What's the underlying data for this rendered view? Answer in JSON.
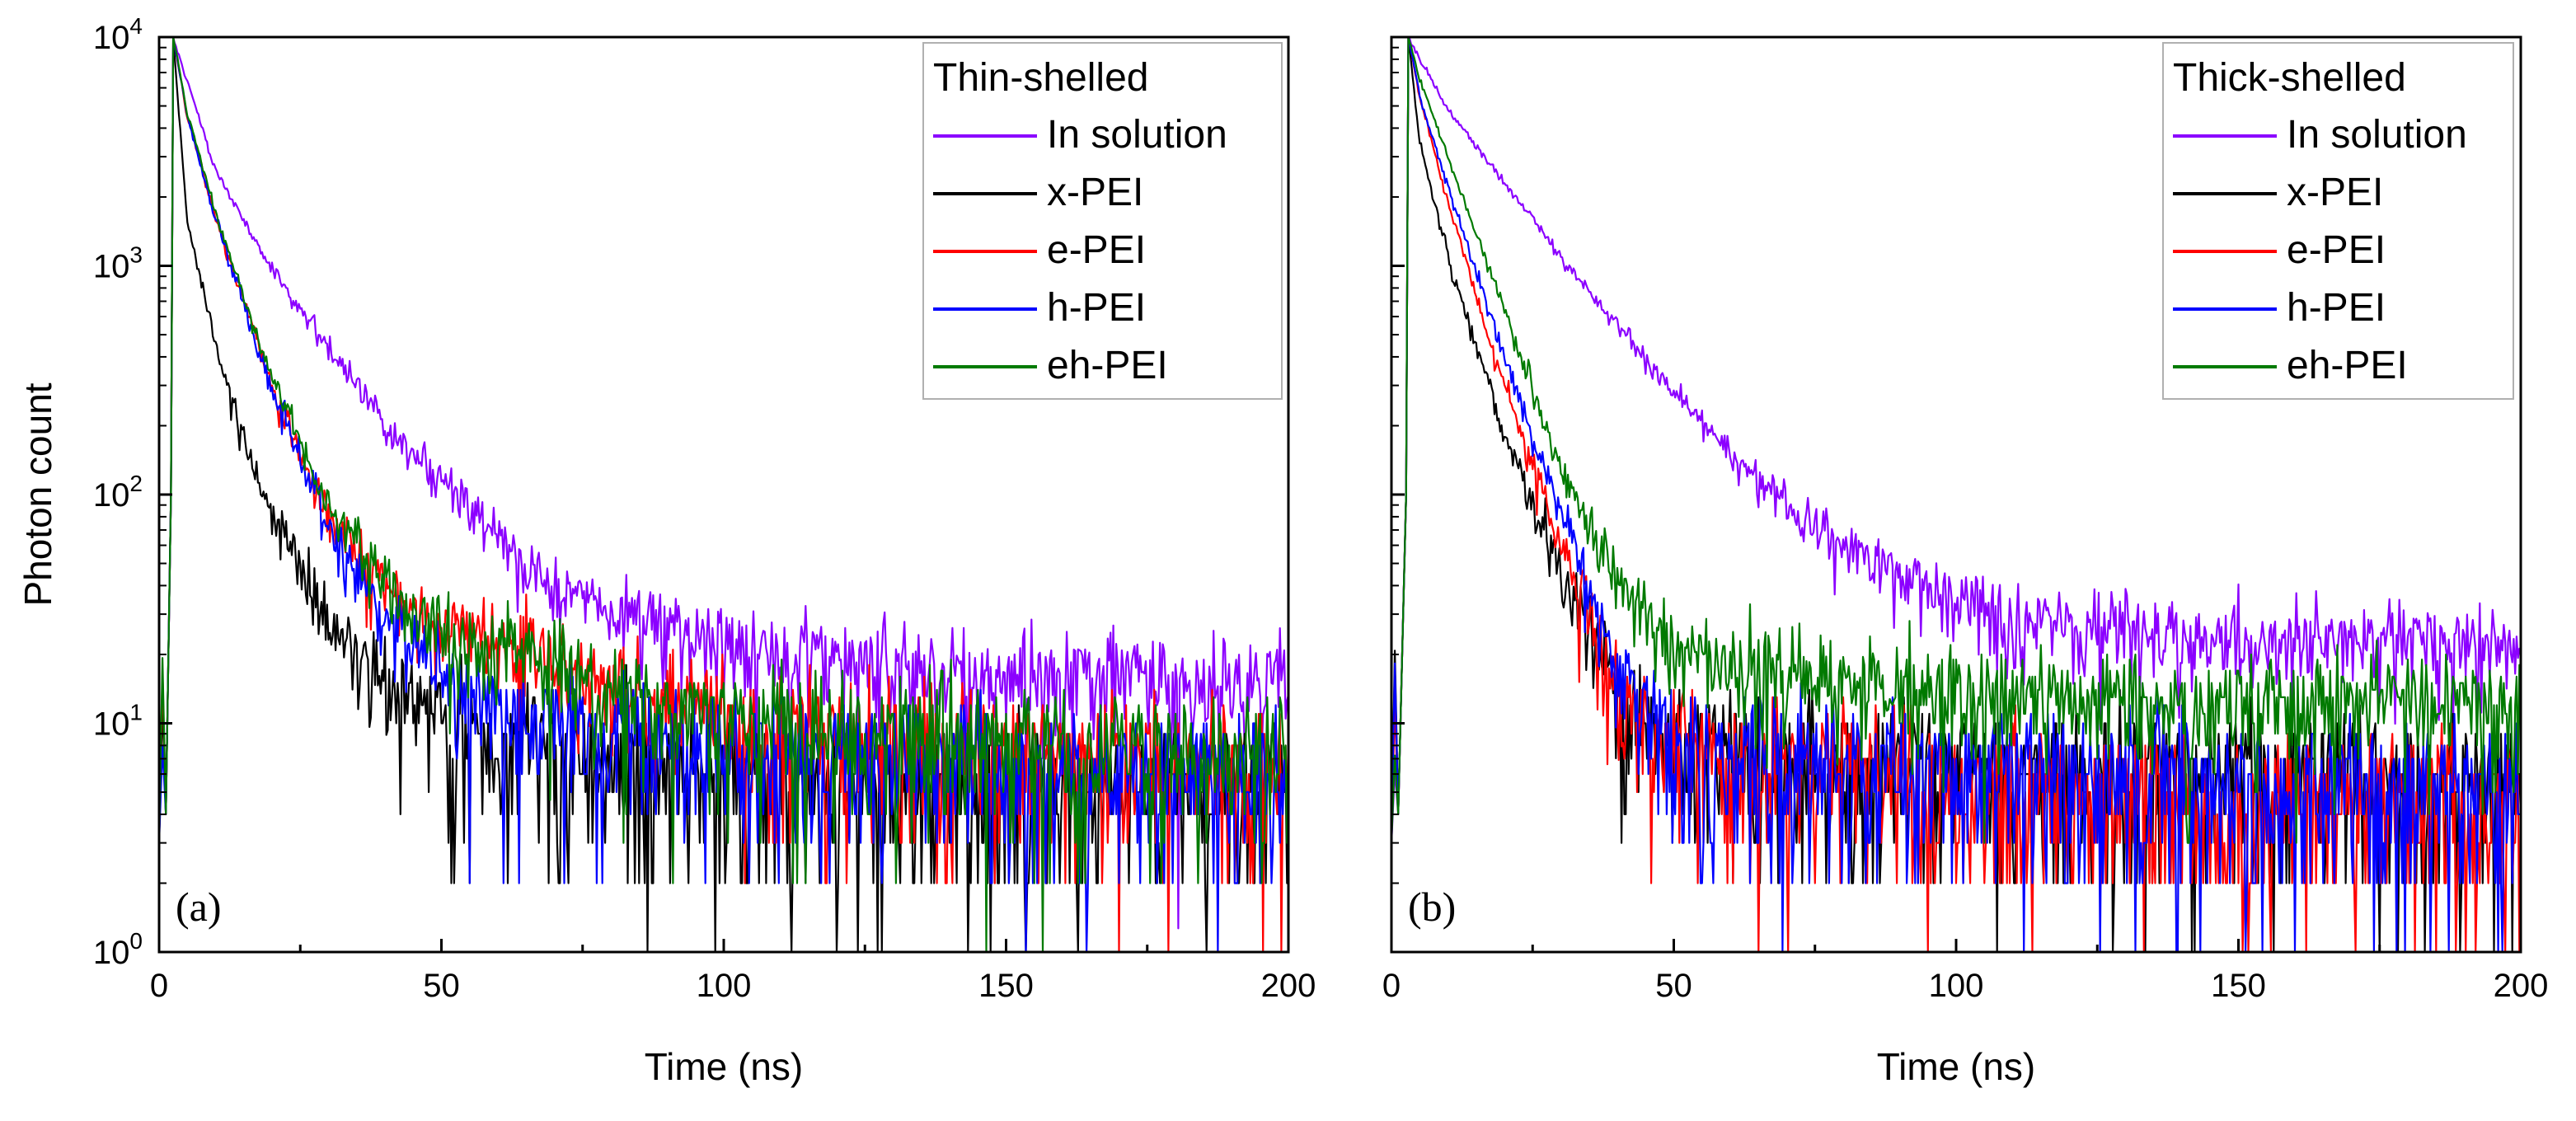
{
  "chart_data": [
    {
      "type": "line",
      "panel_label": "(a)",
      "legend_title": "Thin-shelled",
      "xlabel": "Time (ns)",
      "ylabel": "Photon count",
      "xscale": "linear",
      "yscale": "log",
      "xlim": [
        0,
        200
      ],
      "ylim": [
        1,
        10000
      ],
      "x_ticks": [
        "0",
        "50",
        "100",
        "150",
        "200"
      ],
      "y_ticks": [
        {
          "base": "10",
          "exp": "0"
        },
        {
          "base": "10",
          "exp": "1"
        },
        {
          "base": "10",
          "exp": "2"
        },
        {
          "base": "10",
          "exp": "3"
        },
        {
          "base": "10",
          "exp": "4"
        }
      ],
      "legend_position": "top-right",
      "series": [
        {
          "name": "In solution",
          "color": "#8B00FF",
          "peak_time": 2.5,
          "peak": 10000,
          "x": [
            2.5,
            10,
            20,
            30,
            40,
            50,
            60,
            70,
            80,
            100,
            120,
            150,
            200
          ],
          "values": [
            10000,
            2600,
            980,
            440,
            200,
            115,
            65,
            40,
            30,
            21,
            18,
            16,
            15
          ]
        },
        {
          "name": "x-PEI",
          "color": "#000000",
          "peak_time": 2.5,
          "peak": 10000,
          "x": [
            2.5,
            5,
            10,
            15,
            20,
            25,
            30,
            40,
            50,
            60,
            80,
            100,
            150,
            200
          ],
          "values": [
            10000,
            1500,
            450,
            170,
            80,
            45,
            30,
            15,
            10,
            8,
            6,
            6,
            5,
            5
          ]
        },
        {
          "name": "e-PEI",
          "color": "#FF0000",
          "peak_time": 2.5,
          "peak": 10000,
          "x": [
            2.5,
            5,
            10,
            20,
            30,
            40,
            50,
            60,
            80,
            100,
            150,
            200
          ],
          "values": [
            10000,
            4500,
            1600,
            300,
            80,
            40,
            28,
            22,
            15,
            10,
            7,
            6
          ]
        },
        {
          "name": "h-PEI",
          "color": "#0000FF",
          "peak_time": 2.5,
          "peak": 10000,
          "x": [
            2.5,
            5,
            10,
            20,
            30,
            40,
            50,
            60,
            80,
            100,
            150,
            200
          ],
          "values": [
            10000,
            4500,
            1600,
            280,
            70,
            30,
            15,
            11,
            9,
            8,
            6,
            5
          ]
        },
        {
          "name": "eh-PEI",
          "color": "#007A00",
          "peak_time": 2.5,
          "peak": 10000,
          "x": [
            2.5,
            5,
            10,
            20,
            30,
            40,
            50,
            60,
            80,
            100,
            150,
            200
          ],
          "values": [
            10000,
            4600,
            1700,
            320,
            90,
            40,
            25,
            20,
            14,
            10,
            8,
            7
          ]
        }
      ]
    },
    {
      "type": "line",
      "panel_label": "(b)",
      "legend_title": "Thick-shelled",
      "xlabel": "Time (ns)",
      "ylabel": "",
      "xscale": "linear",
      "yscale": "log",
      "xlim": [
        0,
        200
      ],
      "ylim": [
        1,
        10000
      ],
      "x_ticks": [
        "0",
        "50",
        "100",
        "150",
        "200"
      ],
      "y_ticks": [],
      "legend_position": "top-right",
      "series": [
        {
          "name": "In solution",
          "color": "#8B00FF",
          "peak_time": 3,
          "peak": 10000,
          "x": [
            3,
            10,
            20,
            30,
            40,
            50,
            60,
            70,
            80,
            90,
            100,
            120,
            150,
            200
          ],
          "values": [
            10000,
            4800,
            2300,
            1100,
            550,
            280,
            150,
            90,
            60,
            45,
            35,
            27,
            23,
            22
          ]
        },
        {
          "name": "x-PEI",
          "color": "#000000",
          "peak_time": 3,
          "peak": 10000,
          "x": [
            3,
            5,
            10,
            20,
            30,
            40,
            45,
            50,
            60,
            80,
            100,
            150,
            200
          ],
          "values": [
            10000,
            3500,
            1100,
            180,
            45,
            14,
            10,
            8,
            7,
            6,
            6,
            6,
            5
          ]
        },
        {
          "name": "e-PEI",
          "color": "#FF0000",
          "peak_time": 3,
          "peak": 10000,
          "x": [
            3,
            5,
            10,
            20,
            30,
            40,
            50,
            60,
            80,
            100,
            150,
            200
          ],
          "values": [
            10000,
            5500,
            1900,
            300,
            60,
            15,
            8,
            7,
            6,
            5,
            4,
            4
          ]
        },
        {
          "name": "h-PEI",
          "color": "#0000FF",
          "peak_time": 3,
          "peak": 10000,
          "x": [
            3,
            5,
            10,
            20,
            30,
            40,
            50,
            60,
            80,
            100,
            150,
            200
          ],
          "values": [
            10000,
            5500,
            2200,
            400,
            80,
            18,
            9,
            7,
            6,
            6,
            5,
            5
          ]
        },
        {
          "name": "eh-PEI",
          "color": "#007A00",
          "peak_time": 3,
          "peak": 10000,
          "x": [
            3,
            5,
            10,
            20,
            30,
            40,
            50,
            60,
            80,
            100,
            150,
            200
          ],
          "values": [
            10000,
            6500,
            3000,
            650,
            130,
            40,
            22,
            18,
            15,
            13,
            12,
            12
          ]
        }
      ]
    }
  ]
}
